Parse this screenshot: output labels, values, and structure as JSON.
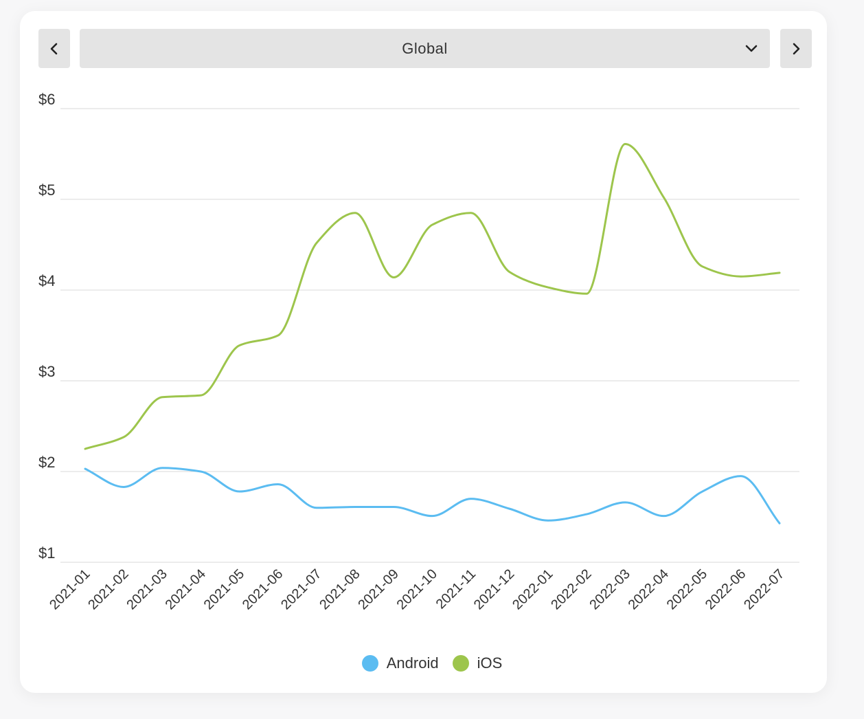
{
  "controls": {
    "prev_icon": "chevron-left-icon",
    "next_icon": "chevron-right-icon",
    "caret_icon": "chevron-down-icon",
    "region_selected": "Global"
  },
  "colors": {
    "android": "#5bbcf1",
    "ios": "#9dc54c",
    "grid": "#d9d9d9"
  },
  "chart_data": {
    "type": "line",
    "title": "",
    "xlabel": "",
    "ylabel": "",
    "ylim": [
      1,
      6
    ],
    "y_ticks": [
      "$1",
      "$2",
      "$3",
      "$4",
      "$5",
      "$6"
    ],
    "grid": true,
    "legend_position": "bottom",
    "categories": [
      "2021-01",
      "2021-02",
      "2021-03",
      "2021-04",
      "2021-05",
      "2021-06",
      "2021-07",
      "2021-08",
      "2021-09",
      "2021-10",
      "2021-11",
      "2021-12",
      "2022-01",
      "2022-02",
      "2022-03",
      "2022-04",
      "2022-05",
      "2022-06",
      "2022-07"
    ],
    "series": [
      {
        "name": "Android",
        "values": [
          2.03,
          1.83,
          2.04,
          2.0,
          1.78,
          1.86,
          1.6,
          1.61,
          1.61,
          1.51,
          1.7,
          1.59,
          1.46,
          1.53,
          1.66,
          1.51,
          1.78,
          1.95,
          1.43
        ]
      },
      {
        "name": "iOS",
        "values": [
          2.25,
          2.38,
          2.82,
          2.84,
          3.39,
          3.5,
          4.52,
          4.85,
          4.14,
          4.72,
          4.85,
          4.2,
          4.03,
          3.96,
          5.61,
          5.02,
          4.26,
          4.15,
          4.19
        ]
      }
    ]
  }
}
